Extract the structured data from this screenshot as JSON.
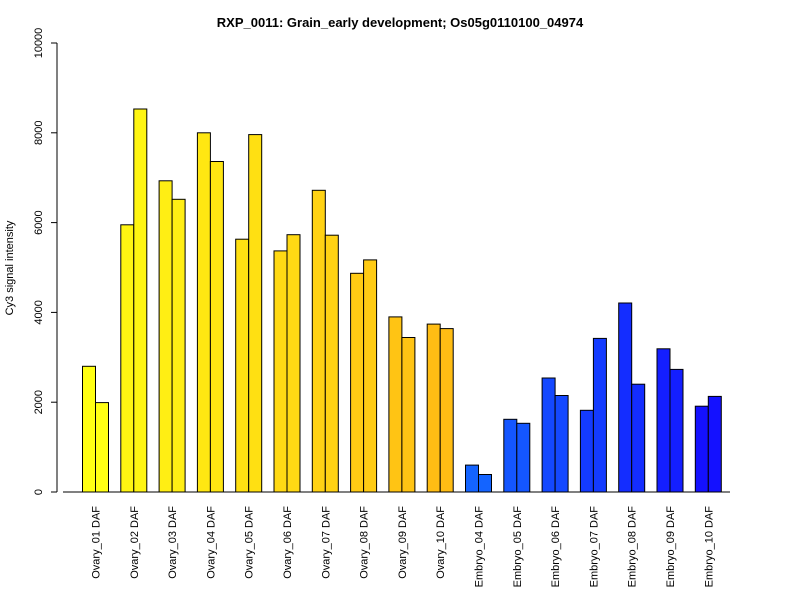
{
  "chart_data": {
    "type": "bar",
    "title": "RXP_0011: Grain_early development; Os05g0110100_04974",
    "xlabel": "",
    "ylabel": "Cy3 signal intensity",
    "ylim": [
      0,
      10000
    ],
    "yticks": [
      0,
      2000,
      4000,
      6000,
      8000,
      10000
    ],
    "grid": false,
    "legend": "none",
    "bars_per_category": 2,
    "categories": [
      "Ovary_01 DAF",
      "Ovary_02 DAF",
      "Ovary_03 DAF",
      "Ovary_04 DAF",
      "Ovary_05 DAF",
      "Ovary_06 DAF",
      "Ovary_07 DAF",
      "Ovary_08 DAF",
      "Ovary_09 DAF",
      "Ovary_10 DAF",
      "Embryo_04 DAF",
      "Embryo_05 DAF",
      "Embryo_06 DAF",
      "Embryo_07 DAF",
      "Embryo_08 DAF",
      "Embryo_09 DAF",
      "Embryo_10 DAF"
    ],
    "series": [
      {
        "values": [
          2800,
          5950,
          6930,
          8000,
          5630,
          5370,
          6720,
          4870,
          3900,
          3740,
          600,
          1620,
          2540,
          1820,
          4210,
          3190,
          1910
        ]
      },
      {
        "values": [
          1990,
          8530,
          6520,
          7360,
          7960,
          5730,
          5720,
          5170,
          3440,
          3640,
          390,
          1530,
          2150,
          3420,
          2400,
          2730,
          2130
        ]
      }
    ],
    "colors": [
      "#ffff14",
      "#fff512",
      "#ffee14",
      "#ffe712",
      "#ffe012",
      "#ffd914",
      "#ffd214",
      "#ffcb14",
      "#ffc414",
      "#ffbd14",
      "#1464ff",
      "#1456ff",
      "#1448ff",
      "#143bff",
      "#142dff",
      "#141fff",
      "#1411ff"
    ]
  }
}
